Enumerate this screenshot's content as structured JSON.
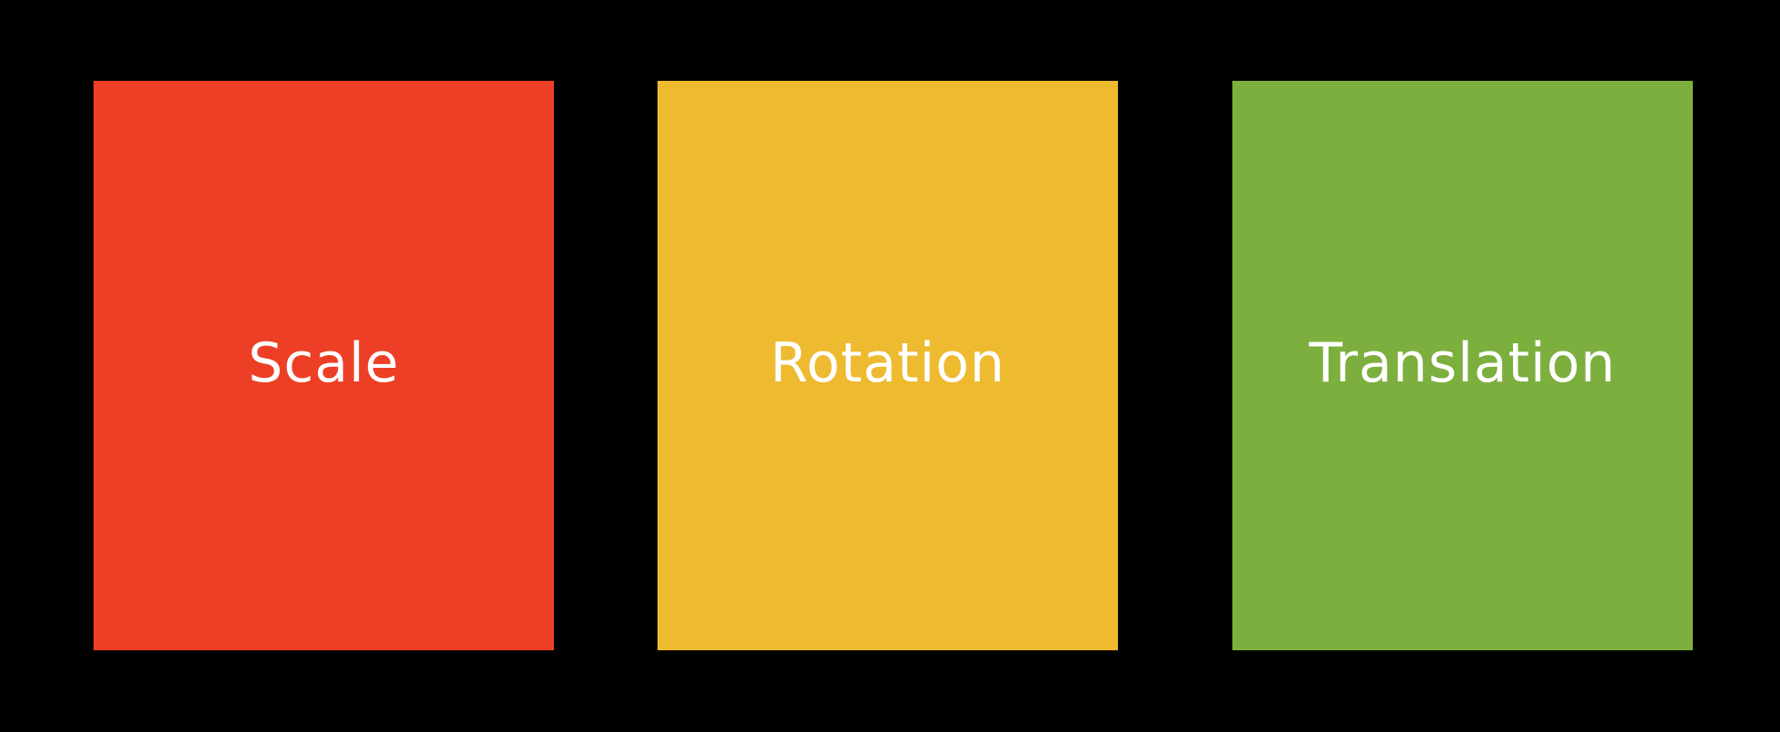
{
  "cards": [
    {
      "label": "Scale",
      "color": "#ED3F25"
    },
    {
      "label": "Rotation",
      "color": "#EDBA30"
    },
    {
      "label": "Translation",
      "color": "#7DAF3F"
    }
  ],
  "background_color": "#000000",
  "text_color": "#FFFFFF"
}
